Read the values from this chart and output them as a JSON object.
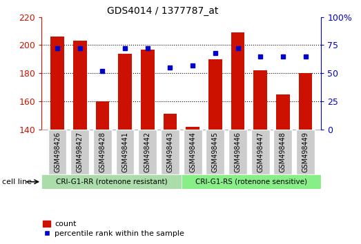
{
  "title": "GDS4014 / 1377787_at",
  "samples": [
    "GSM498426",
    "GSM498427",
    "GSM498428",
    "GSM498441",
    "GSM498442",
    "GSM498443",
    "GSM498444",
    "GSM498445",
    "GSM498446",
    "GSM498447",
    "GSM498448",
    "GSM498449"
  ],
  "counts": [
    206,
    203,
    160,
    194,
    197,
    151,
    142,
    190,
    209,
    182,
    165,
    180
  ],
  "percentile_ranks": [
    72,
    72,
    52,
    72,
    72,
    55,
    57,
    68,
    72,
    65,
    65,
    65
  ],
  "y_min": 140,
  "y_max": 220,
  "y_ticks": [
    140,
    160,
    180,
    200,
    220
  ],
  "right_y_ticks": [
    0,
    25,
    50,
    75,
    100
  ],
  "right_y_tick_labels": [
    "0",
    "25",
    "50",
    "75",
    "100%"
  ],
  "bar_color": "#cc1100",
  "dot_color": "#0000cc",
  "group1_label": "CRI-G1-RR (rotenone resistant)",
  "group2_label": "CRI-G1-RS (rotenone sensitive)",
  "group1_color": "#aaddaa",
  "group2_color": "#88ee88",
  "cell_line_label": "cell line",
  "legend_count": "count",
  "legend_percentile": "percentile rank within the sample",
  "xlabel_color": "#cc1100",
  "right_axis_color": "#0000cc",
  "tick_bg_color": "#cccccc"
}
